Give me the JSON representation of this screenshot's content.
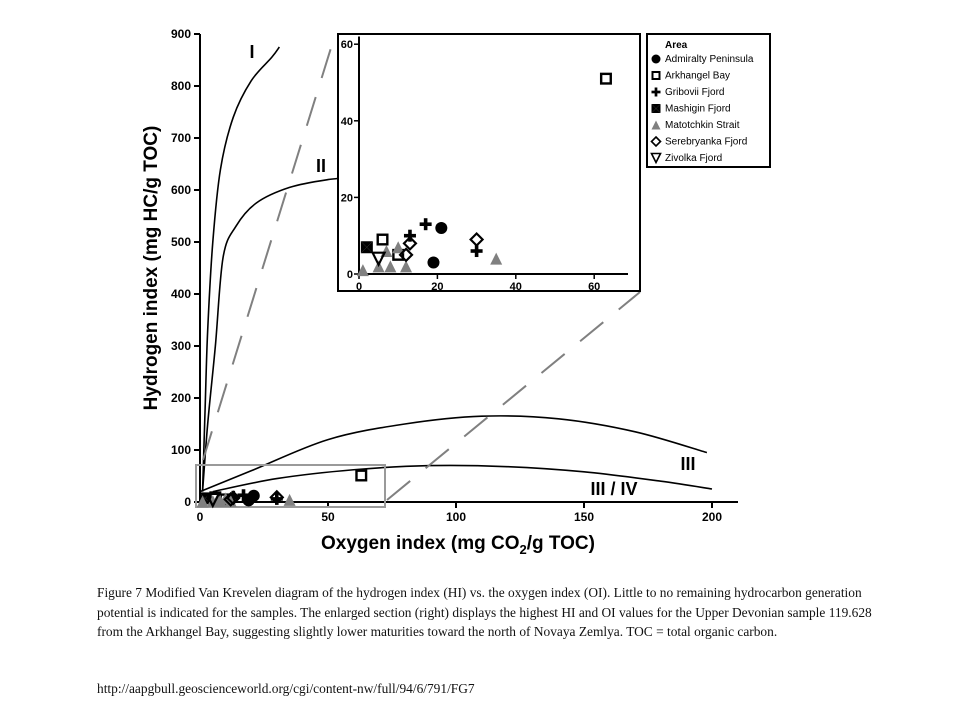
{
  "chart_data": [
    {
      "type": "scatter",
      "title": "",
      "xlabel_parts": [
        "Oxygen index (mg CO",
        "2",
        "/g TOC)"
      ],
      "ylabel": "Hydrogen index (mg HC/g TOC)",
      "xlim": [
        0,
        210
      ],
      "ylim": [
        0,
        900
      ],
      "x_ticks": [
        0,
        50,
        100,
        150,
        200
      ],
      "y_ticks": [
        0,
        100,
        200,
        300,
        400,
        500,
        600,
        700,
        800,
        900
      ],
      "grid": false,
      "zoom_box": {
        "x": [
          0,
          73
        ],
        "y": [
          0,
          65
        ]
      },
      "curve_labels": [
        "I",
        "II",
        "III",
        "III / IV"
      ],
      "curves": [
        {
          "label": "I",
          "points": [
            [
              1,
              20
            ],
            [
              2,
              180
            ],
            [
              3,
              330
            ],
            [
              5,
              500
            ],
            [
              8,
              640
            ],
            [
              13,
              740
            ],
            [
              20,
              810
            ],
            [
              28,
              855
            ],
            [
              31,
              875
            ]
          ]
        },
        {
          "label": "II",
          "points": [
            [
              1,
              20
            ],
            [
              3,
              150
            ],
            [
              6,
              300
            ],
            [
              9,
              470
            ],
            [
              14,
              530
            ],
            [
              22,
              575
            ],
            [
              35,
              605
            ],
            [
              50,
              620
            ],
            [
              62,
              625
            ]
          ]
        },
        {
          "label": "III",
          "points": [
            [
              0,
              20
            ],
            [
              20,
              60
            ],
            [
              50,
              120
            ],
            [
              80,
              150
            ],
            [
              110,
              165
            ],
            [
              140,
              160
            ],
            [
              170,
              135
            ],
            [
              198,
              95
            ]
          ]
        },
        {
          "label": "III / IV",
          "points": [
            [
              5,
              20
            ],
            [
              30,
              45
            ],
            [
              60,
              62
            ],
            [
              90,
              70
            ],
            [
              120,
              68
            ],
            [
              150,
              58
            ],
            [
              180,
              40
            ],
            [
              200,
              25
            ]
          ]
        }
      ],
      "series": [
        {
          "name": "Admiralty Peninsula",
          "marker": "circle",
          "color": "#000000",
          "points": [
            [
              21,
              12
            ],
            [
              19,
              3
            ]
          ]
        },
        {
          "name": "Arkhangel Bay",
          "marker": "square",
          "color": "#000000",
          "points": [
            [
              63,
              51
            ],
            [
              6,
              9
            ],
            [
              10,
              5
            ]
          ]
        },
        {
          "name": "Gribovii Fjord",
          "marker": "plus",
          "color": "#000000",
          "points": [
            [
              17,
              13
            ],
            [
              13,
              10
            ],
            [
              30,
              6
            ]
          ]
        },
        {
          "name": "Mashigin Fjord",
          "marker": "bowtie",
          "color": "#000000",
          "points": [
            [
              2,
              7
            ]
          ]
        },
        {
          "name": "Matotchkin Strait",
          "marker": "triangle-up",
          "color": "#808080",
          "points": [
            [
              35,
              4
            ],
            [
              1,
              1
            ],
            [
              5,
              2
            ],
            [
              8,
              2
            ],
            [
              12,
              2
            ],
            [
              7,
              6
            ],
            [
              10,
              7
            ]
          ]
        },
        {
          "name": "Serebryanka Fjord",
          "marker": "diamond",
          "color": "#000000",
          "points": [
            [
              30,
              9
            ],
            [
              13,
              8
            ],
            [
              12,
              5
            ]
          ]
        },
        {
          "name": "Zivolka Fjord",
          "marker": "triangle-down",
          "color": "#000000",
          "points": [
            [
              5,
              4
            ]
          ]
        }
      ]
    },
    {
      "type": "scatter",
      "title": "",
      "xlim": [
        0,
        70
      ],
      "ylim": [
        0,
        62
      ],
      "x_ticks": [
        0,
        20,
        40,
        60
      ],
      "y_ticks": [
        0,
        20,
        40,
        60
      ],
      "grid": false,
      "legend": {
        "title": "Area",
        "position": "top-right"
      }
    }
  ],
  "caption": "Figure 7 Modified Van Krevelen diagram of the hydrogen index (HI) vs. the oxygen index (OI). Little to no remaining hydrocarbon generation potential is indicated for the samples. The enlarged section (right) displays the highest HI and OI values for the Upper Devonian sample 119.628 from the Arkhangel Bay, suggesting slightly lower maturities toward the north of Novaya Zemlya. TOC = total organic carbon.",
  "source_url": "http://aapgbull.geoscienceworld.org/cgi/content-nw/full/94/6/791/FG7"
}
